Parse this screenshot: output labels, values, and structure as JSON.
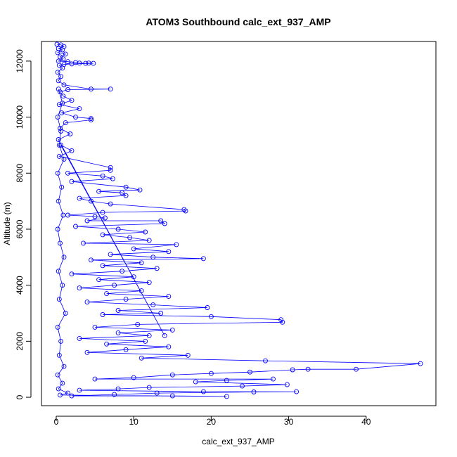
{
  "chart_data": {
    "type": "scatter",
    "title": "ATOM3 Southbound calc_ext_937_AMP",
    "xlabel": "calc_ext_937_AMP",
    "ylabel": "Altitude (m)",
    "x_ticks": [
      "0",
      "10",
      "20",
      "30",
      "40"
    ],
    "y_ticks": [
      "0",
      "2000",
      "4000",
      "6000",
      "8000",
      "10000",
      "12000"
    ],
    "xlim": [
      -1.9,
      49.0
    ],
    "ylim": [
      -300,
      12700
    ],
    "grid": false,
    "legend": "none",
    "connected": true,
    "series": [
      {
        "color": "#0000ff",
        "points": [
          [
            0.1,
            12600
          ],
          [
            0.6,
            12580
          ],
          [
            1.0,
            12520
          ],
          [
            0.3,
            12450
          ],
          [
            0.8,
            12400
          ],
          [
            0.2,
            12300
          ],
          [
            1.2,
            12250
          ],
          [
            0.5,
            12150
          ],
          [
            0.9,
            12080
          ],
          [
            0.3,
            12000
          ],
          [
            1.5,
            11980
          ],
          [
            2.5,
            11950
          ],
          [
            3.0,
            11930
          ],
          [
            3.8,
            11920
          ],
          [
            4.2,
            11930
          ],
          [
            4.8,
            11920
          ],
          [
            2.0,
            11900
          ],
          [
            1.0,
            11880
          ],
          [
            0.4,
            11850
          ],
          [
            0.8,
            11750
          ],
          [
            0.2,
            11600
          ],
          [
            0.6,
            11450
          ],
          [
            0.3,
            11300
          ],
          [
            1.0,
            11150
          ],
          [
            4.5,
            11000
          ],
          [
            7.0,
            11000
          ],
          [
            1.5,
            10980
          ],
          [
            0.5,
            10900
          ],
          [
            0.9,
            10750
          ],
          [
            2.0,
            10600
          ],
          [
            0.4,
            10450
          ],
          [
            3.0,
            10300
          ],
          [
            0.7,
            10150
          ],
          [
            2.5,
            10000
          ],
          [
            4.5,
            9950
          ],
          [
            4.5,
            9900
          ],
          [
            1.2,
            9800
          ],
          [
            0.5,
            9600
          ],
          [
            1.8,
            9400
          ],
          [
            0.3,
            9200
          ],
          [
            14.0,
            2200
          ],
          [
            0.6,
            9000
          ],
          [
            2.0,
            8800
          ],
          [
            0.4,
            8600
          ],
          [
            7.0,
            8200
          ],
          [
            7.0,
            8100
          ],
          [
            1.5,
            8000
          ],
          [
            6.0,
            7900
          ],
          [
            7.3,
            7800
          ],
          [
            2.0,
            7700
          ],
          [
            9.0,
            7500
          ],
          [
            10.8,
            7400
          ],
          [
            5.5,
            7350
          ],
          [
            8.5,
            7300
          ],
          [
            9.0,
            7200
          ],
          [
            3.0,
            7100
          ],
          [
            4.5,
            7000
          ],
          [
            7.0,
            6900
          ],
          [
            16.5,
            6700
          ],
          [
            16.7,
            6650
          ],
          [
            6.0,
            6600
          ],
          [
            1.5,
            6500
          ],
          [
            5.0,
            6450
          ],
          [
            6.3,
            6400
          ],
          [
            4.0,
            6300
          ],
          [
            13.5,
            6300
          ],
          [
            14.0,
            6200
          ],
          [
            2.5,
            6100
          ],
          [
            8.0,
            6000
          ],
          [
            11.5,
            5900
          ],
          [
            6.0,
            5800
          ],
          [
            9.5,
            5700
          ],
          [
            12.0,
            5600
          ],
          [
            3.5,
            5500
          ],
          [
            15.5,
            5450
          ],
          [
            10.0,
            5300
          ],
          [
            14.5,
            5200
          ],
          [
            7.0,
            5100
          ],
          [
            12.5,
            5000
          ],
          [
            19.0,
            4950
          ],
          [
            4.5,
            4900
          ],
          [
            11.0,
            4800
          ],
          [
            6.0,
            4700
          ],
          [
            13.0,
            4600
          ],
          [
            8.5,
            4500
          ],
          [
            2.0,
            4400
          ],
          [
            10.0,
            4300
          ],
          [
            5.5,
            4200
          ],
          [
            12.0,
            4100
          ],
          [
            7.5,
            4000
          ],
          [
            3.0,
            3900
          ],
          [
            11.0,
            3800
          ],
          [
            6.5,
            3700
          ],
          [
            14.5,
            3600
          ],
          [
            9.0,
            3500
          ],
          [
            4.0,
            3400
          ],
          [
            12.5,
            3300
          ],
          [
            19.5,
            3200
          ],
          [
            8.0,
            3100
          ],
          [
            13.5,
            3000
          ],
          [
            6.0,
            2950
          ],
          [
            20.0,
            2880
          ],
          [
            29.0,
            2770
          ],
          [
            29.2,
            2680
          ],
          [
            10.5,
            2600
          ],
          [
            5.0,
            2500
          ],
          [
            15.0,
            2400
          ],
          [
            8.0,
            2300
          ],
          [
            12.0,
            2200
          ],
          [
            3.0,
            2100
          ],
          [
            11.5,
            2000
          ],
          [
            6.5,
            1900
          ],
          [
            14.5,
            1800
          ],
          [
            9.0,
            1700
          ],
          [
            4.0,
            1600
          ],
          [
            17.0,
            1500
          ],
          [
            11.0,
            1400
          ],
          [
            27.0,
            1300
          ],
          [
            47.0,
            1200
          ],
          [
            38.7,
            1000
          ],
          [
            32.5,
            1000
          ],
          [
            30.5,
            980
          ],
          [
            25.0,
            900
          ],
          [
            20.0,
            850
          ],
          [
            15.0,
            800
          ],
          [
            10.0,
            700
          ],
          [
            5.0,
            650
          ],
          [
            28.0,
            650
          ],
          [
            22.0,
            600
          ],
          [
            18.0,
            550
          ],
          [
            29.8,
            450
          ],
          [
            24.0,
            400
          ],
          [
            12.0,
            350
          ],
          [
            8.0,
            300
          ],
          [
            3.0,
            250
          ],
          [
            19.0,
            200
          ],
          [
            31.0,
            200
          ],
          [
            25.5,
            190
          ],
          [
            13.0,
            150
          ],
          [
            7.5,
            100
          ],
          [
            2.0,
            50
          ],
          [
            15.0,
            50
          ],
          [
            22.0,
            30
          ],
          [
            0.5,
            80
          ],
          [
            1.5,
            150
          ],
          [
            0.3,
            300
          ],
          [
            0.8,
            500
          ],
          [
            0.2,
            800
          ],
          [
            1.0,
            1100
          ],
          [
            0.4,
            1500
          ],
          [
            0.6,
            2000
          ],
          [
            0.2,
            2500
          ],
          [
            1.2,
            3000
          ],
          [
            0.4,
            3500
          ],
          [
            0.8,
            4000
          ],
          [
            0.3,
            4500
          ],
          [
            1.0,
            5000
          ],
          [
            0.5,
            5500
          ],
          [
            0.2,
            6000
          ],
          [
            0.9,
            6500
          ],
          [
            0.3,
            7000
          ],
          [
            0.7,
            7500
          ],
          [
            0.2,
            8000
          ],
          [
            1.0,
            8500
          ],
          [
            0.4,
            9000
          ],
          [
            0.6,
            9500
          ],
          [
            0.2,
            10000
          ],
          [
            0.8,
            10500
          ],
          [
            0.3,
            11000
          ]
        ]
      }
    ]
  }
}
